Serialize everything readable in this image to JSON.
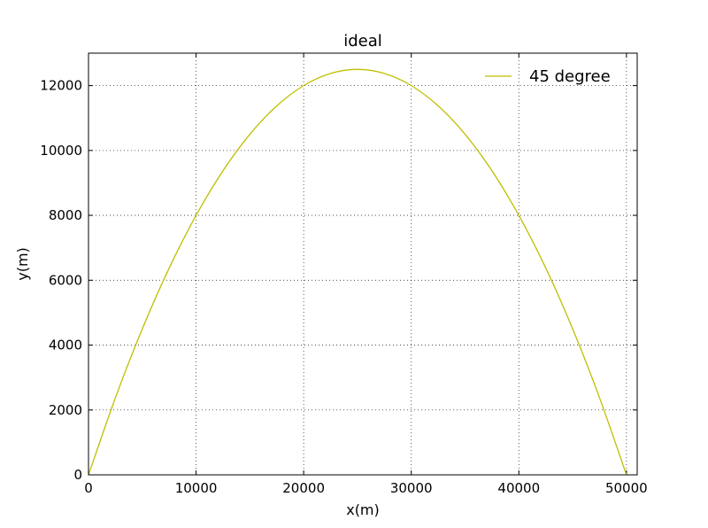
{
  "chart_data": {
    "type": "line",
    "title": "ideal",
    "xlabel": "x(m)",
    "ylabel": "y(m)",
    "xlim": [
      0,
      51000
    ],
    "ylim": [
      0,
      13000
    ],
    "xticks": [
      0,
      10000,
      20000,
      30000,
      40000,
      50000
    ],
    "yticks": [
      0,
      2000,
      4000,
      6000,
      8000,
      10000,
      12000
    ],
    "xtick_labels": [
      "0",
      "10000",
      "20000",
      "30000",
      "40000",
      "50000"
    ],
    "ytick_labels": [
      "0",
      "2000",
      "4000",
      "6000",
      "8000",
      "10000",
      "12000"
    ],
    "grid": true,
    "legend_position": "top-right",
    "series": [
      {
        "name": "45 degree",
        "color": "#bfbf00",
        "x": [
          0,
          2500,
          5000,
          7500,
          10000,
          12500,
          15000,
          17500,
          20000,
          22500,
          25000,
          27500,
          30000,
          32500,
          35000,
          37500,
          40000,
          42500,
          45000,
          47500,
          50000
        ],
        "y": [
          0,
          2375,
          4500,
          6375,
          8000,
          9375,
          10500,
          11375,
          12000,
          12375,
          12500,
          12375,
          12000,
          11375,
          10500,
          9375,
          8000,
          6375,
          4500,
          2375,
          0
        ]
      }
    ]
  }
}
